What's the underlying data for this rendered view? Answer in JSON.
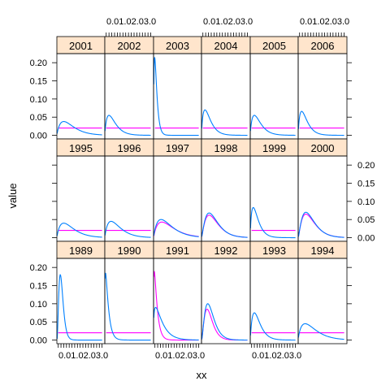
{
  "chart_data": {
    "type": "line",
    "layout": "lattice 6 columns x 3 rows",
    "xlabel": "xx",
    "ylabel": "value",
    "xlim": [
      0,
      3.5
    ],
    "ylim": [
      -0.01,
      0.225
    ],
    "x_ticks": [
      0.0,
      0.1,
      0.2,
      0.3,
      1.0,
      2.0,
      3.0
    ],
    "x_tick_labels": [
      "0.0",
      "0.1",
      "0.2",
      "0.3",
      "1.0",
      "2.0",
      "3.0"
    ],
    "x_tick_label_text": "0.01.02.03.0",
    "y_ticks": [
      0.0,
      0.05,
      0.1,
      0.15,
      0.2
    ],
    "y_tick_labels": [
      "0.00",
      "0.05",
      "0.10",
      "0.15",
      "0.20"
    ],
    "colors": {
      "strip": "#ffe5cc",
      "blue_series": "#0080ff",
      "magenta_series": "#ff00ff",
      "frame": "#000000"
    },
    "panel_rows": [
      [
        {
          "label": "2001",
          "blue": {
            "peak": 0.038,
            "peak_x": 0.5,
            "decay": 0.55
          },
          "magenta": {
            "type": "flat",
            "level": 0.02
          }
        },
        {
          "label": "2002",
          "blue": {
            "peak": 0.055,
            "peak_x": 0.3,
            "decay": 0.35
          },
          "magenta": {
            "type": "flat",
            "level": 0.02
          }
        },
        {
          "label": "2003",
          "blue": {
            "peak": 0.215,
            "peak_x": 0.08,
            "decay": 0.12
          },
          "magenta": {
            "type": "flat",
            "level": 0.02
          }
        },
        {
          "label": "2004",
          "blue": {
            "peak": 0.07,
            "peak_x": 0.25,
            "decay": 0.3
          },
          "magenta": {
            "type": "flat",
            "level": 0.02
          }
        },
        {
          "label": "2005",
          "blue": {
            "peak": 0.055,
            "peak_x": 0.3,
            "decay": 0.35
          },
          "magenta": {
            "type": "flat",
            "level": 0.02
          }
        },
        {
          "label": "2006",
          "blue": {
            "peak": 0.066,
            "peak_x": 0.25,
            "decay": 0.3
          },
          "magenta": {
            "type": "flat",
            "level": 0.02
          }
        }
      ],
      [
        {
          "label": "1995",
          "blue": {
            "peak": 0.04,
            "peak_x": 0.5,
            "decay": 0.55
          },
          "magenta": {
            "type": "flat",
            "level": 0.02
          }
        },
        {
          "label": "1996",
          "blue": {
            "peak": 0.045,
            "peak_x": 0.45,
            "decay": 0.5
          },
          "magenta": {
            "type": "flat",
            "level": 0.02
          }
        },
        {
          "label": "1997",
          "blue": {
            "peak": 0.05,
            "peak_x": 0.55,
            "decay": 0.6
          },
          "magenta": {
            "type": "curve",
            "peak": 0.043,
            "peak_x": 0.6,
            "decay": 0.65
          }
        },
        {
          "label": "1998",
          "blue": {
            "peak": 0.068,
            "peak_x": 0.55,
            "decay": 0.4
          },
          "magenta": {
            "type": "curve",
            "peak": 0.062,
            "peak_x": 0.55,
            "decay": 0.42
          }
        },
        {
          "label": "1999",
          "blue": {
            "peak": 0.083,
            "peak_x": 0.22,
            "decay": 0.28
          },
          "magenta": {
            "type": "flat",
            "level": 0.02
          }
        },
        {
          "label": "2000",
          "blue": {
            "peak": 0.07,
            "peak_x": 0.55,
            "decay": 0.4
          },
          "magenta": {
            "type": "curve",
            "peak": 0.065,
            "peak_x": 0.55,
            "decay": 0.42
          }
        }
      ],
      [
        {
          "label": "1989",
          "blue": {
            "peak": 0.18,
            "peak_x": 0.25,
            "decay": 0.1
          },
          "magenta": {
            "type": "flat",
            "level": 0.02
          }
        },
        {
          "label": "1990",
          "blue": {
            "peak": 0.185,
            "peak_x": 0.05,
            "decay": 0.18
          },
          "magenta": {
            "type": "flat",
            "level": 0.02
          }
        },
        {
          "label": "1991",
          "blue": {
            "peak": 0.09,
            "peak_x": 0.15,
            "decay": 0.45
          },
          "magenta": {
            "type": "curve",
            "peak": 0.19,
            "peak_x": 0.05,
            "decay": 0.18
          }
        },
        {
          "label": "1992",
          "blue": {
            "peak": 0.1,
            "peak_x": 0.45,
            "decay": 0.25
          },
          "magenta": {
            "type": "curve",
            "peak": 0.085,
            "peak_x": 0.4,
            "decay": 0.22
          }
        },
        {
          "label": "1993",
          "blue": {
            "peak": 0.075,
            "peak_x": 0.3,
            "decay": 0.3
          },
          "magenta": {
            "type": "flat",
            "level": 0.02
          }
        },
        {
          "label": "1994",
          "blue": {
            "peak": 0.045,
            "peak_x": 0.5,
            "decay": 0.6
          },
          "magenta": {
            "type": "flat",
            "level": 0.02
          }
        }
      ]
    ]
  }
}
